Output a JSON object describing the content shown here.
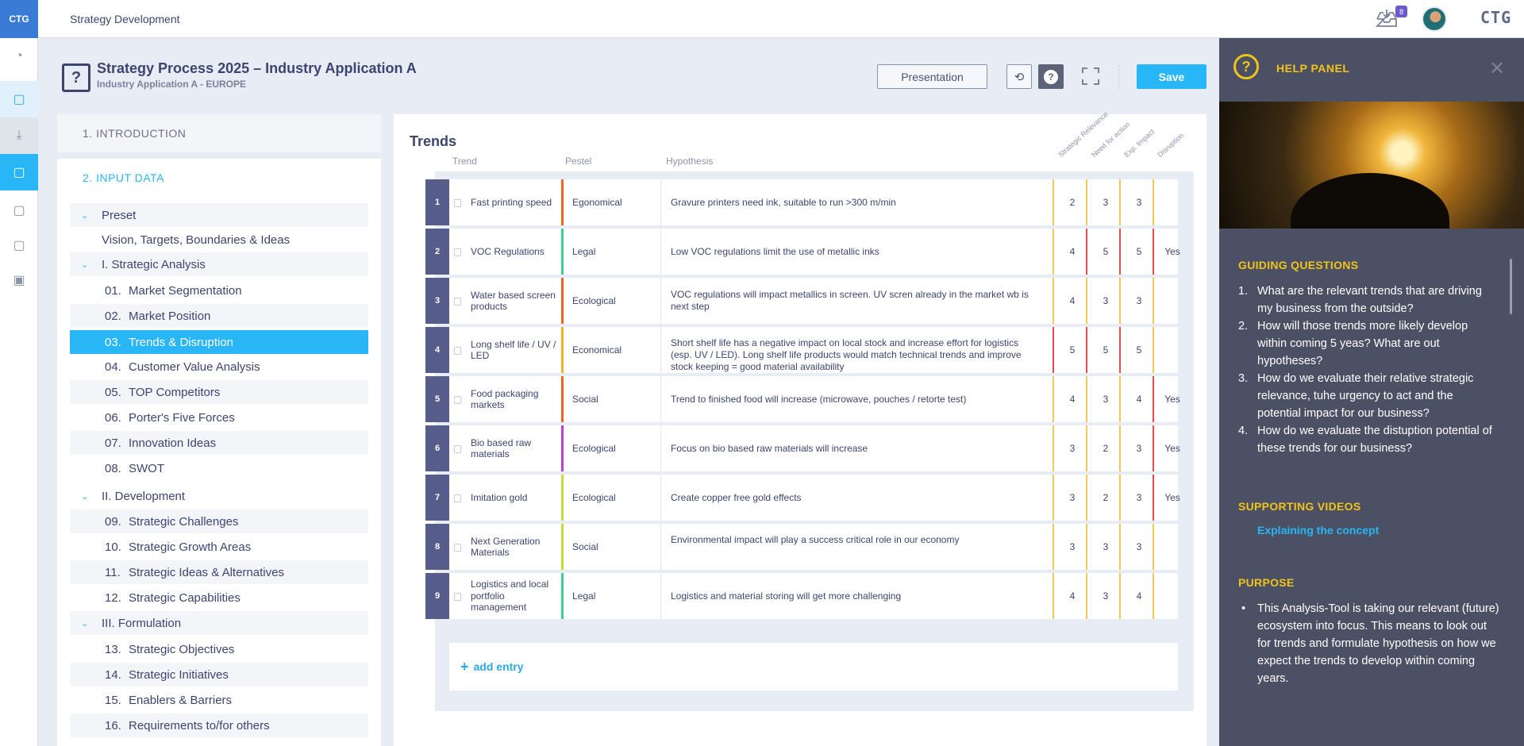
{
  "app": {
    "logo": "CTG",
    "title": "Strategy Development",
    "brand": "CTG",
    "inbox_count": "8"
  },
  "page": {
    "title": "Strategy Process 2025 – Industry Application A",
    "subtitle": "Industry Application A - EUROPE"
  },
  "toolbar": {
    "presentation_label": "Presentation",
    "save_label": "Save"
  },
  "nav": {
    "intro": "1. INTRODUCTION",
    "input_data": "2. INPUT DATA",
    "preset": "Preset",
    "vision": "Vision, Targets, Boundaries & Ideas",
    "groups": [
      {
        "label": "I. Strategic Analysis"
      },
      {
        "label": "II. Development"
      },
      {
        "label": "III. Formulation"
      }
    ],
    "items": [
      {
        "num": "01.",
        "label": "Market Segmentation"
      },
      {
        "num": "02.",
        "label": "Market Position"
      },
      {
        "num": "03.",
        "label": "Trends & Disruption"
      },
      {
        "num": "04.",
        "label": "Customer Value Analysis"
      },
      {
        "num": "05.",
        "label": "TOP Competitors"
      },
      {
        "num": "06.",
        "label": "Porter's Five Forces"
      },
      {
        "num": "07.",
        "label": "Innovation Ideas"
      },
      {
        "num": "08.",
        "label": "SWOT"
      },
      {
        "num": "09.",
        "label": "Strategic Challenges"
      },
      {
        "num": "10.",
        "label": "Strategic Growth Areas"
      },
      {
        "num": "11.",
        "label": "Strategic Ideas & Alternatives"
      },
      {
        "num": "12.",
        "label": "Strategic Capabilities"
      },
      {
        "num": "13.",
        "label": "Strategic Objectives"
      },
      {
        "num": "14.",
        "label": "Strategic Initiatives"
      },
      {
        "num": "15.",
        "label": "Enablers & Barriers"
      },
      {
        "num": "16.",
        "label": "Requirements to/for others"
      }
    ]
  },
  "trends": {
    "title": "Trends",
    "headers": {
      "trend": "Trend",
      "pestel": "Pestel",
      "hypothesis": "Hypothesis",
      "relevance": "Strategic Relevance",
      "need": "Need for action",
      "impact": "Exp. Impact",
      "disruption": "Disruption"
    },
    "rows": [
      {
        "n": "1",
        "trend": "Fast printing speed",
        "pestel": "Egonomical",
        "color": "#f0661e",
        "hypothesis": "Gravure printers need ink, suitable to run >300 m/min",
        "rel": "2",
        "need": "3",
        "imp": "3",
        "dis": ""
      },
      {
        "n": "2",
        "trend": "VOC Regulations",
        "pestel": "Legal",
        "color": "#3fcf8e",
        "hypothesis": "Low VOC regulations limit the use of metallic inks",
        "rel": "4",
        "need": "5",
        "imp": "5",
        "dis": "Yes"
      },
      {
        "n": "3",
        "trend": "Water based screen products",
        "pestel": "Ecological",
        "color": "#f0661e",
        "hypothesis": "VOC regulations will impact metallics in screen. UV scren already in the market wb is next step",
        "rel": "4",
        "need": "3",
        "imp": "3",
        "dis": ""
      },
      {
        "n": "4",
        "trend": "Long shelf life / UV / LED",
        "pestel": "Economical",
        "color": "#f0b429",
        "hypothesis": "Short shelf life has a negative impact on local stock and increase effort for logistics (esp. UV / LED). Long shelf life products would match technical trends and improve stock keeping = good material availability",
        "rel": "5",
        "need": "5",
        "imp": "5",
        "dis": ""
      },
      {
        "n": "5",
        "trend": "Food packaging markets",
        "pestel": "Social",
        "color": "#f0661e",
        "hypothesis": "Trend to finished food will increase (microwave, pouches / retorte test)",
        "rel": "4",
        "need": "3",
        "imp": "4",
        "dis": "Yes"
      },
      {
        "n": "6",
        "trend": "Bio based raw materials",
        "pestel": "Ecological",
        "color": "#c03fd0",
        "hypothesis": "Focus on bio based raw materials will increase",
        "rel": "3",
        "need": "2",
        "imp": "3",
        "dis": "Yes"
      },
      {
        "n": "7",
        "trend": "Imitation gold",
        "pestel": "Ecological",
        "color": "#c9d93a",
        "hypothesis": "Create copper free gold effects",
        "rel": "3",
        "need": "2",
        "imp": "3",
        "dis": "Yes"
      },
      {
        "n": "8",
        "trend": "Next Generation Materials",
        "pestel": "Social",
        "color": "#c9d93a",
        "hypothesis": "Environmental impact will play a success critical role in our economy",
        "rel": "3",
        "need": "3",
        "imp": "3",
        "dis": ""
      },
      {
        "n": "9",
        "trend": "Logistics and local portfolio management",
        "pestel": "Legal",
        "color": "#3fcf8e",
        "hypothesis": "Logistics and material storing will get more challenging",
        "rel": "4",
        "need": "3",
        "imp": "4",
        "dis": ""
      }
    ],
    "add_label": "add entry"
  },
  "help": {
    "title": "HELP PANEL",
    "guiding_title": "GUIDING QUESTIONS",
    "questions": [
      {
        "n": "1.",
        "text": "What are the relevant trends that are driving my business from the outside?"
      },
      {
        "n": "2.",
        "text": "How will those trends more likely develop within coming 5 yeas? What are out hypotheses?"
      },
      {
        "n": "3.",
        "text": "How do we evaluate their relative strategic relevance, tuhe urgency to act and the potential impact for our business?"
      },
      {
        "n": "4.",
        "text": "How do we evaluate the distuption potential of these trends for our business?"
      }
    ],
    "videos_title": "SUPPORTING VIDEOS",
    "video_link": "Explaining the concept",
    "purpose_title": "PURPOSE",
    "purpose_text": "This Analysis-Tool is taking our relevant (future) ecosystem into focus. This means to look out for trends and formulate hypothesis on how we expect the trends to develop within coming years."
  }
}
